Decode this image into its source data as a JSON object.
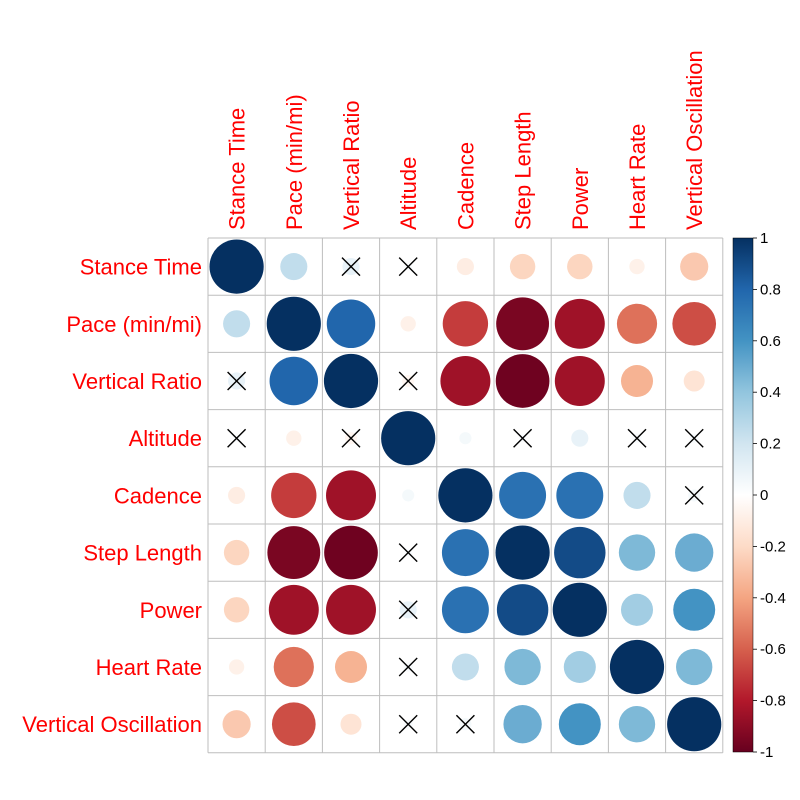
{
  "chart_data": {
    "type": "heatmap",
    "title": "",
    "variables": [
      "Stance Time",
      "Pace (min/mi)",
      "Vertical Ratio",
      "Altitude",
      "Cadence",
      "Step Length",
      "Power",
      "Heart Rate",
      "Vertical Oscillation"
    ],
    "matrix": [
      [
        1.0,
        0.25,
        0.1,
        0.02,
        -0.1,
        -0.22,
        -0.22,
        -0.08,
        -0.27
      ],
      [
        0.25,
        1.0,
        0.8,
        -0.08,
        -0.7,
        -0.95,
        -0.85,
        -0.55,
        -0.65
      ],
      [
        0.1,
        0.8,
        1.0,
        -0.05,
        -0.85,
        -0.98,
        -0.85,
        -0.35,
        -0.15
      ],
      [
        0.02,
        -0.08,
        -0.05,
        1.0,
        0.05,
        0.02,
        0.1,
        0.03,
        0.03
      ],
      [
        -0.1,
        -0.7,
        -0.85,
        0.05,
        1.0,
        0.75,
        0.75,
        0.25,
        0.05
      ],
      [
        -0.22,
        -0.95,
        -0.98,
        0.02,
        0.75,
        1.0,
        0.9,
        0.45,
        0.5
      ],
      [
        -0.22,
        -0.85,
        -0.85,
        0.1,
        0.75,
        0.9,
        1.0,
        0.35,
        0.6
      ],
      [
        -0.08,
        -0.55,
        -0.35,
        0.03,
        0.25,
        0.45,
        0.35,
        1.0,
        0.45
      ],
      [
        -0.27,
        -0.65,
        -0.15,
        0.03,
        0.05,
        0.5,
        0.6,
        0.45,
        1.0
      ]
    ],
    "insignificant": [
      [
        0,
        2
      ],
      [
        0,
        3
      ],
      [
        2,
        0
      ],
      [
        2,
        3
      ],
      [
        3,
        0
      ],
      [
        3,
        2
      ],
      [
        3,
        5
      ],
      [
        3,
        7
      ],
      [
        3,
        8
      ],
      [
        4,
        8
      ],
      [
        5,
        3
      ],
      [
        6,
        3
      ],
      [
        7,
        3
      ],
      [
        8,
        3
      ],
      [
        8,
        4
      ]
    ],
    "colorbar": {
      "ticks": [
        "1",
        "0.8",
        "0.6",
        "0.4",
        "0.2",
        "0",
        "-0.2",
        "-0.4",
        "-0.6",
        "-0.8",
        "-1"
      ],
      "range": [
        -1,
        1
      ]
    },
    "colors": {
      "negative_end": "#67001F",
      "neutral": "#FFFFFF",
      "positive_end": "#053061",
      "label": "#FF0000",
      "grid": "#BEBEBE"
    }
  }
}
